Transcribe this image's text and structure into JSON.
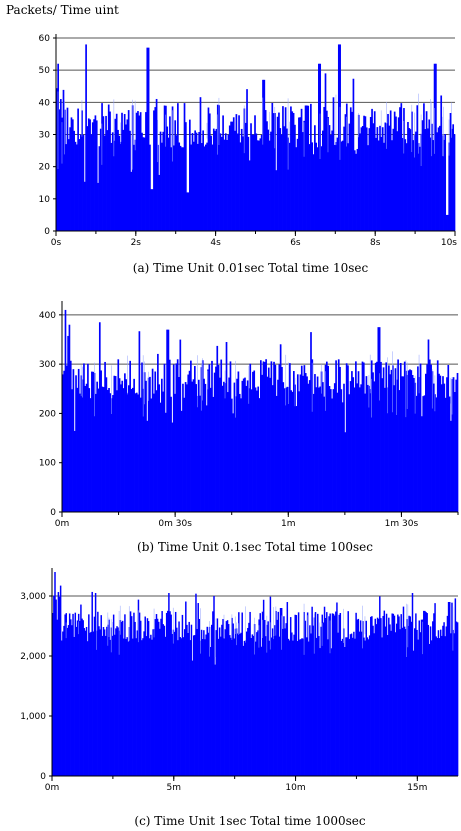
{
  "figure": {
    "ylabel": "Packets/ Time uint"
  },
  "chart_data": [
    {
      "type": "bar",
      "caption": "(a) Time Unit 0.01sec Total time 10sec",
      "ylim": [
        0,
        60
      ],
      "yticks": [
        0,
        10,
        20,
        30,
        40,
        50,
        60
      ],
      "ytick_labels": [
        "0",
        "10",
        "20",
        "30",
        "40",
        "50",
        "60"
      ],
      "xlim": [
        0,
        10
      ],
      "xticks": [
        0,
        2,
        4,
        6,
        8,
        10
      ],
      "xtick_labels": [
        "0s",
        "2s",
        "4s",
        "6s",
        "8s",
        "10s"
      ],
      "gridlines_y": [
        30,
        40,
        50,
        60
      ],
      "color": "#0000ff",
      "bar_count": 300,
      "base_level": 33,
      "noise": 7,
      "peaks": [
        [
          0.05,
          52
        ],
        [
          0.75,
          58
        ],
        [
          2.3,
          57
        ],
        [
          3.3,
          12
        ],
        [
          4.4,
          34
        ],
        [
          5.2,
          47
        ],
        [
          6.6,
          52
        ],
        [
          6.75,
          49
        ],
        [
          7.1,
          58
        ],
        [
          9.5,
          52
        ]
      ],
      "dips": [
        [
          2.4,
          13
        ],
        [
          3.3,
          12
        ],
        [
          9.8,
          5
        ]
      ]
    },
    {
      "type": "bar",
      "caption": "(b) Time Unit 0.1sec Total time 100sec",
      "ylim": [
        0,
        420
      ],
      "yticks": [
        0,
        100,
        200,
        300,
        400
      ],
      "ytick_labels": [
        "0",
        "100",
        "200",
        "300",
        "400"
      ],
      "xlim": [
        0,
        105
      ],
      "xticks": [
        0,
        30,
        60,
        90
      ],
      "xtick_labels": [
        "0m",
        "0m 30s",
        "1m",
        "1m 30s"
      ],
      "gridlines_y": [
        300,
        400
      ],
      "color": "#0000ff",
      "bar_count": 300,
      "base_level": 270,
      "noise": 40,
      "peaks": [
        [
          1,
          410
        ],
        [
          2,
          380
        ],
        [
          10,
          385
        ],
        [
          28,
          370
        ],
        [
          45,
          360
        ],
        [
          66,
          365
        ],
        [
          84,
          375
        ],
        [
          97,
          350
        ]
      ],
      "dips": [
        [
          45,
          230
        ],
        [
          62,
          215
        ],
        [
          103,
          185
        ]
      ]
    },
    {
      "type": "bar",
      "caption": "(c) Time Unit 1sec Total time 1000sec",
      "ylim": [
        0,
        3400
      ],
      "yticks": [
        0,
        1000,
        2000,
        3000
      ],
      "ytick_labels": [
        "0",
        "1,000",
        "2,000",
        "3,000"
      ],
      "xlim": [
        0,
        16.67
      ],
      "xticks": [
        0,
        5,
        10,
        15
      ],
      "xtick_labels": [
        "0m",
        "5m",
        "10m",
        "15m"
      ],
      "gridlines_y": [
        3000
      ],
      "color": "#0000ff",
      "bar_count": 360,
      "base_level": 2500,
      "noise": 260,
      "peaks": [
        [
          0.1,
          3400
        ],
        [
          1.8,
          3050
        ],
        [
          4.8,
          3050
        ],
        [
          9.4,
          2800
        ],
        [
          14.8,
          3050
        ],
        [
          16.3,
          2900
        ]
      ],
      "dips": [
        [
          6.5,
          2150
        ],
        [
          12.0,
          2150
        ]
      ]
    }
  ]
}
